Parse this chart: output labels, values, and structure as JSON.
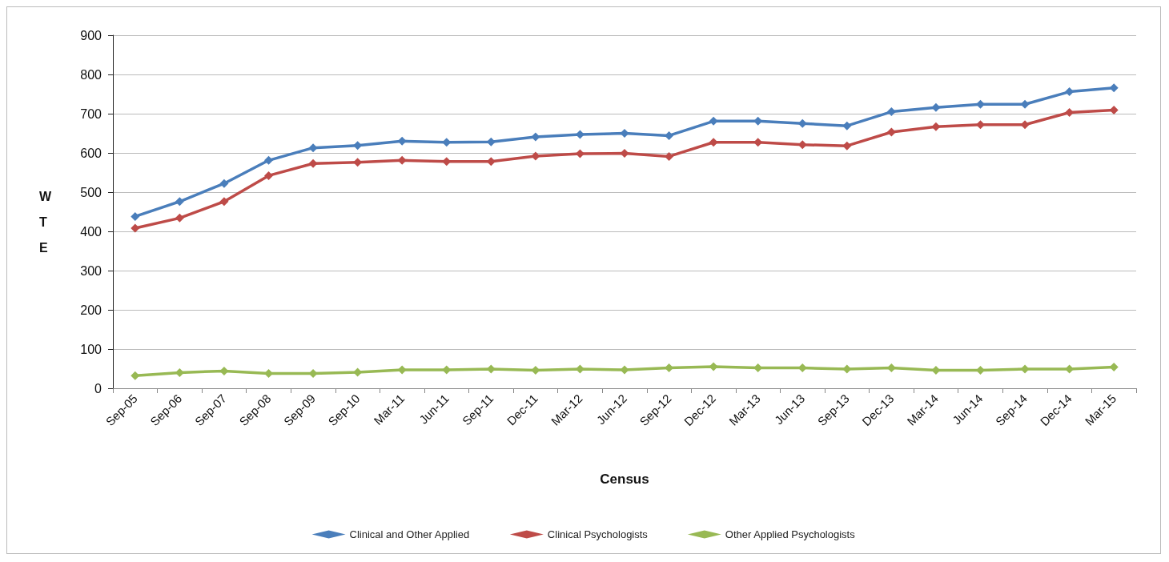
{
  "chart_data": {
    "type": "line",
    "xlabel": "Census",
    "ylabel": "W\nT\nE",
    "categories": [
      "Sep-05",
      "Sep-06",
      "Sep-07",
      "Sep-08",
      "Sep-09",
      "Sep-10",
      "Mar-11",
      "Jun-11",
      "Sep-11",
      "Dec-11",
      "Mar-12",
      "Jun-12",
      "Sep-12",
      "Dec-12",
      "Mar-13",
      "Jun-13",
      "Sep-13",
      "Dec-13",
      "Mar-14",
      "Jun-14",
      "Sep-14",
      "Dec-14",
      "Mar-15"
    ],
    "series": [
      {
        "name": "Clinical and Other Applied",
        "color": "#4a7ebb",
        "values": [
          438,
          476,
          522,
          581,
          613,
          619,
          630,
          627,
          628,
          641,
          647,
          650,
          644,
          681,
          681,
          675,
          669,
          705,
          716,
          724,
          724,
          756,
          766
        ]
      },
      {
        "name": "Clinical Psychologists",
        "color": "#be4b48",
        "values": [
          408,
          434,
          476,
          542,
          573,
          576,
          581,
          578,
          578,
          592,
          598,
          599,
          591,
          627,
          627,
          621,
          618,
          653,
          667,
          672,
          672,
          703,
          709
        ]
      },
      {
        "name": "Other Applied Psychologists",
        "color": "#98b954",
        "values": [
          32,
          40,
          44,
          38,
          38,
          41,
          47,
          47,
          49,
          46,
          49,
          47,
          52,
          55,
          52,
          52,
          49,
          52,
          46,
          46,
          49,
          49,
          54
        ]
      }
    ],
    "ylim": [
      0,
      900
    ],
    "yticks": [
      0,
      100,
      200,
      300,
      400,
      500,
      600,
      700,
      800,
      900
    ],
    "grid": "y",
    "legend": "bottom",
    "marker": "diamond",
    "line_style": "solid"
  }
}
